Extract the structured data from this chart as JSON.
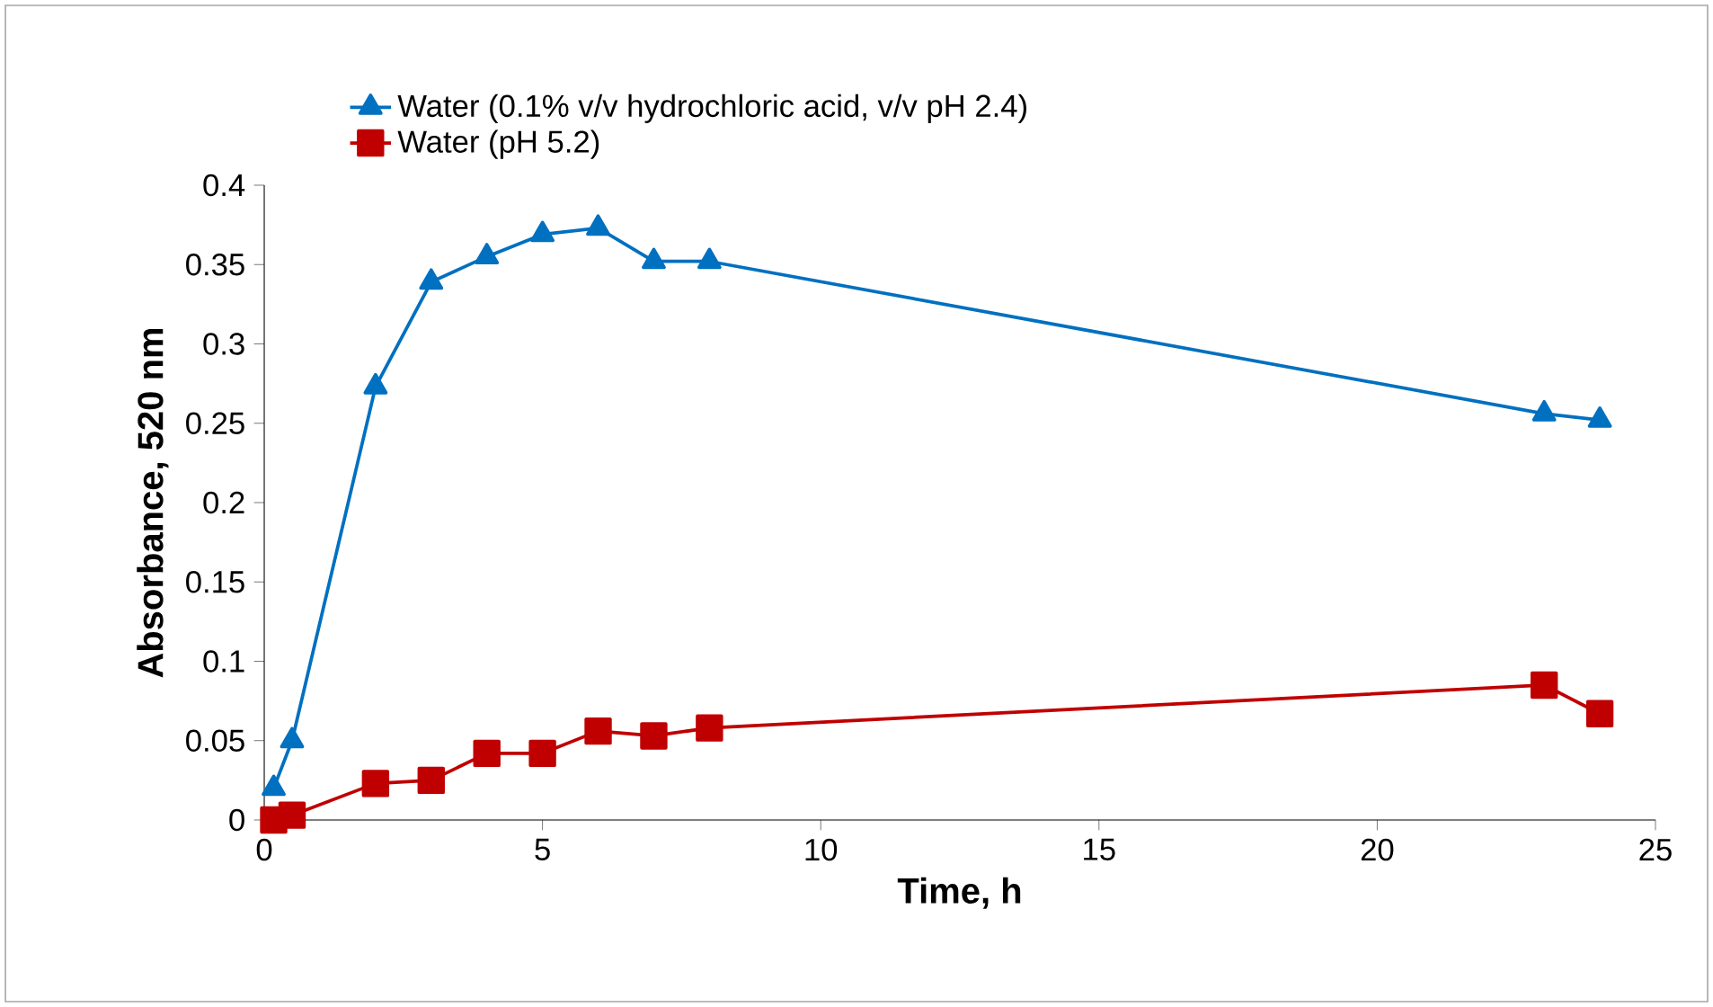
{
  "chart_data": {
    "type": "line",
    "xlabel": "Time, h",
    "ylabel": "Absorbance, 520 nm",
    "xlim": [
      0,
      25
    ],
    "xticks": [
      0,
      5,
      10,
      15,
      20,
      25
    ],
    "ylim": [
      0,
      0.4
    ],
    "yticks": [
      0,
      0.05,
      0.1,
      0.15,
      0.2,
      0.25,
      0.3,
      0.35,
      0.4
    ],
    "grid": false,
    "legend": "top",
    "line_style": "solid",
    "series": [
      {
        "name": "Water (0.1% v/v hydrochloric acid, v/v pH 2.4)",
        "color": "#0070c0",
        "marker": "triangle",
        "x": [
          0.17,
          0.5,
          2,
          3,
          4,
          5,
          6,
          7,
          8,
          23,
          24
        ],
        "values": [
          0.02,
          0.05,
          0.273,
          0.339,
          0.355,
          0.369,
          0.373,
          0.352,
          0.352,
          0.256,
          0.252
        ]
      },
      {
        "name": "Water (pH 5.2)",
        "color": "#c00000",
        "marker": "square",
        "x": [
          0.17,
          0.5,
          2,
          3,
          4,
          5,
          6,
          7,
          8,
          23,
          24
        ],
        "values": [
          0,
          0.003,
          0.023,
          0.025,
          0.042,
          0.042,
          0.056,
          0.053,
          0.058,
          0.085,
          0.067
        ]
      }
    ]
  }
}
